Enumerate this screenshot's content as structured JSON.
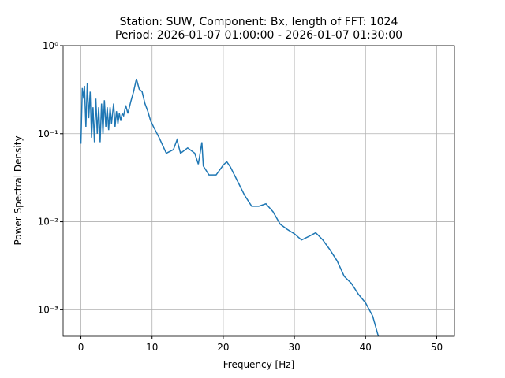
{
  "chart_data": {
    "type": "line",
    "title": "Station: SUW, Component: Bx, length of FFT: 1024",
    "subtitle": "Period: 2026-01-07 01:00:00 - 2026-01-07 01:30:00",
    "x_label": "Frequency [Hz]",
    "y_label": "Power Spectral Density",
    "log_y": true,
    "grid": true,
    "xlim": [
      -2.5,
      52.5
    ],
    "xticks": [
      0,
      10,
      20,
      30,
      40,
      50
    ],
    "ylim": [
      0.0005,
      1
    ],
    "yticks": [
      {
        "value": 0.001,
        "label": "10⁻³"
      },
      {
        "value": 0.01,
        "label": "10⁻²"
      },
      {
        "value": 0.1,
        "label": "10⁻¹"
      },
      {
        "value": 1,
        "label": "10⁰"
      }
    ],
    "series": [
      {
        "color": "#1f77b4",
        "x": [
          0,
          0.2,
          0.4,
          0.5,
          0.7,
          0.9,
          1.1,
          1.3,
          1.5,
          1.7,
          1.9,
          2.1,
          2.3,
          2.5,
          2.7,
          2.9,
          3.1,
          3.3,
          3.5,
          3.7,
          3.9,
          4.1,
          4.3,
          4.6,
          4.8,
          5.0,
          5.2,
          5.4,
          5.6,
          5.8,
          6.0,
          6.3,
          6.6,
          7.0,
          7.4,
          7.8,
          8.2,
          8.6,
          9.0,
          9.4,
          9.8,
          10.2,
          11,
          12,
          13,
          13.5,
          14,
          15,
          16,
          16.5,
          17,
          17.2,
          18,
          19,
          20,
          20.5,
          21,
          22,
          23,
          24,
          25,
          26,
          27,
          28,
          29,
          30,
          31,
          32,
          33,
          34,
          35,
          36,
          37,
          38,
          39,
          40,
          41,
          41.8
        ],
        "values": [
          0.077,
          0.33,
          0.25,
          0.35,
          0.12,
          0.38,
          0.15,
          0.3,
          0.09,
          0.2,
          0.08,
          0.25,
          0.1,
          0.2,
          0.08,
          0.22,
          0.1,
          0.24,
          0.12,
          0.2,
          0.11,
          0.2,
          0.13,
          0.22,
          0.12,
          0.18,
          0.13,
          0.17,
          0.14,
          0.17,
          0.16,
          0.21,
          0.17,
          0.23,
          0.3,
          0.42,
          0.32,
          0.3,
          0.22,
          0.18,
          0.14,
          0.12,
          0.09,
          0.06,
          0.066,
          0.085,
          0.06,
          0.069,
          0.06,
          0.045,
          0.08,
          0.043,
          0.034,
          0.034,
          0.044,
          0.048,
          0.042,
          0.029,
          0.02,
          0.015,
          0.015,
          0.016,
          0.013,
          0.0094,
          0.0082,
          0.0073,
          0.0062,
          0.0068,
          0.0075,
          0.0062,
          0.0048,
          0.0036,
          0.0024,
          0.002,
          0.0015,
          0.0012,
          0.00085,
          0.0005
        ]
      }
    ]
  }
}
